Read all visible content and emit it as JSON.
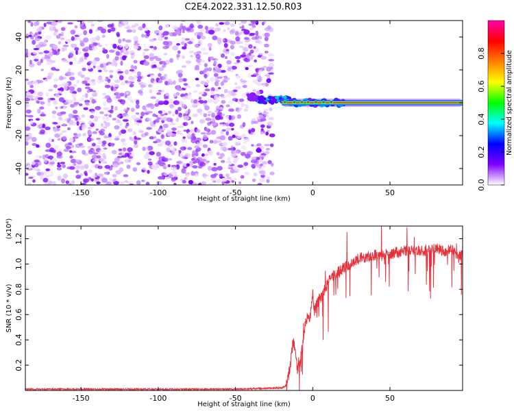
{
  "title": "C2E4.2022.331.12.50.R03",
  "chart_data": [
    {
      "type": "heatmap",
      "xlabel": "Height of straight line (km)",
      "ylabel": "Frequency (Hz)",
      "xlim": [
        -186,
        97
      ],
      "ylim": [
        -50,
        50
      ],
      "xticks": [
        -150,
        -100,
        -50,
        0,
        50
      ],
      "yticks": [
        -40,
        -20,
        0,
        20,
        40
      ],
      "noise_region_x": [
        -186,
        -26
      ],
      "signal_start_x": -35,
      "signal_center_frequency": 0,
      "colorbar": {
        "label": "Normalized spectral amplitude",
        "range": [
          0.0,
          1.0
        ],
        "ticks": [
          "0.0",
          "0.2",
          "0.4",
          "0.6",
          "0.8"
        ],
        "colors": [
          "#ffffff",
          "#7f00ff",
          "#0000ff",
          "#00ffff",
          "#00ff00",
          "#ffff00",
          "#ff8000",
          "#ff0000",
          "#ff00aa"
        ]
      }
    },
    {
      "type": "line",
      "xlabel": "Height of straight line (km)",
      "ylabel": "SNR (10 * v/v)",
      "yunit": "(x10⁴)",
      "xlim": [
        -186,
        97
      ],
      "ylim": [
        0,
        1.3
      ],
      "xticks": [
        -150,
        -100,
        -50,
        0,
        50
      ],
      "yticks": [
        0.2,
        0.4,
        0.6,
        0.8,
        1.0,
        1.2
      ],
      "color": "#e8303a",
      "series": [
        {
          "x": [
            -186,
            -150,
            -100,
            -50,
            -20,
            -17,
            -15,
            -14,
            -13,
            -12,
            -11,
            -10,
            -8,
            -6,
            -5,
            -4,
            -3,
            -2,
            -1,
            0,
            1,
            2,
            4,
            6,
            8,
            10,
            12,
            15,
            20,
            25,
            30,
            40,
            50,
            60,
            70,
            80,
            85,
            90,
            94,
            97
          ],
          "y": [
            0.01,
            0.01,
            0.01,
            0.01,
            0.02,
            0.04,
            0.16,
            0.25,
            0.36,
            0.38,
            0.28,
            0.16,
            0.22,
            0.43,
            0.52,
            0.55,
            0.6,
            0.56,
            0.65,
            0.78,
            0.62,
            0.66,
            0.72,
            0.75,
            0.8,
            0.85,
            0.9,
            0.92,
            0.97,
            1.0,
            1.05,
            1.07,
            1.08,
            1.1,
            1.1,
            1.12,
            1.1,
            1.12,
            1.05,
            1.08
          ]
        }
      ]
    }
  ]
}
